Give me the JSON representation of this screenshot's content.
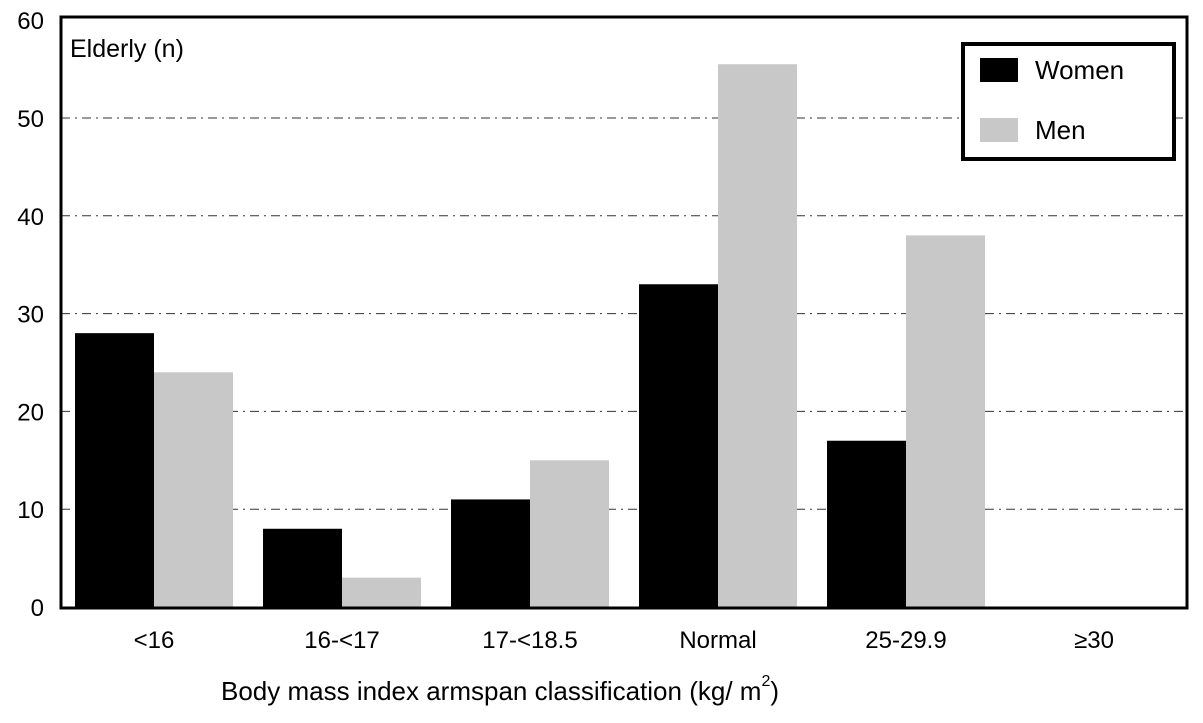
{
  "chart_data": {
    "type": "bar",
    "title": "Elderly (n)",
    "xlabel": "Body mass index armspan classification (kg/ m",
    "xlabel_superscript": "2",
    "xlabel_suffix": ")",
    "ylabel": "",
    "ylim": [
      0,
      60
    ],
    "yticks": [
      0,
      10,
      20,
      30,
      40,
      50,
      60
    ],
    "grid": true,
    "legend_position": "top-right",
    "categories": [
      "<16",
      "16-<17",
      "17-<18.5",
      "Normal",
      "25-29.9",
      "≥30"
    ],
    "series": [
      {
        "name": "Women",
        "color": "#000000",
        "values": [
          28,
          8,
          11,
          33,
          17,
          0
        ]
      },
      {
        "name": "Men",
        "color": "#c8c8c8",
        "values": [
          24,
          3,
          15,
          55.5,
          38,
          0
        ]
      }
    ]
  }
}
